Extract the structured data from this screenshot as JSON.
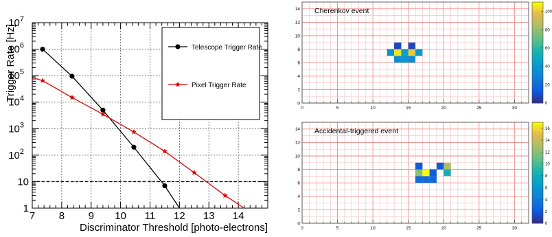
{
  "chart_data": [
    {
      "type": "line",
      "xlabel": "Discriminator Threshold [photo-electrons]",
      "ylabel": "Trigger Rate [Hz]",
      "xlim": [
        7,
        15
      ],
      "ylim": [
        1,
        10000000
      ],
      "y_scale": "log",
      "grid": true,
      "legend_position": "top-right",
      "x_ticks": [
        "7",
        "8",
        "9",
        "10",
        "11",
        "12",
        "13",
        "14"
      ],
      "y_ticks": [
        {
          "value": 1,
          "label": "1"
        },
        {
          "value": 10,
          "label": "10"
        },
        {
          "value": 100,
          "label": "10",
          "exp": "2"
        },
        {
          "value": 1000,
          "label": "10",
          "exp": "3"
        },
        {
          "value": 10000,
          "label": "10",
          "exp": "4"
        },
        {
          "value": 100000,
          "label": "10",
          "exp": "5"
        },
        {
          "value": 1000000,
          "label": "10",
          "exp": "6"
        },
        {
          "value": 10000000,
          "label": "10",
          "exp": "7"
        }
      ],
      "reference_line": {
        "y": 10,
        "style": "dashed",
        "color": "#000000"
      },
      "series": [
        {
          "name": "Telescope Trigger Rate",
          "color": "#000000",
          "marker": "circle",
          "x": [
            7.35,
            8.35,
            9.4,
            10.45,
            11.5,
            12.0
          ],
          "y": [
            1000000,
            95000,
            5000,
            200,
            7,
            1
          ]
        },
        {
          "name": "Pixel Trigger Rate",
          "color": "#e00000",
          "marker": "star",
          "x": [
            7.0,
            7.35,
            8.35,
            9.4,
            10.45,
            11.5,
            12.5,
            13.55,
            14.2
          ],
          "y": [
            85000,
            65000,
            15000,
            3500,
            750,
            140,
            22,
            3,
            1
          ]
        }
      ]
    },
    {
      "type": "heatmap",
      "title": "Cherenkov event",
      "xlim": [
        0,
        32
      ],
      "ylim": [
        0,
        15
      ],
      "x_ticks": [
        "0",
        "5",
        "10",
        "15",
        "20",
        "25",
        "30"
      ],
      "y_ticks": [
        "0",
        "2",
        "4",
        "6",
        "8",
        "10",
        "12",
        "14"
      ],
      "colorbar_ticks": [
        "0",
        "20",
        "40",
        "60",
        "80",
        "100"
      ],
      "z_range": [
        0,
        110
      ],
      "cells": [
        {
          "x": 13,
          "y": 8,
          "z": 8
        },
        {
          "x": 15,
          "y": 8,
          "z": 8
        },
        {
          "x": 12,
          "y": 7,
          "z": 40
        },
        {
          "x": 13,
          "y": 7,
          "z": 105
        },
        {
          "x": 14,
          "y": 7,
          "z": 45
        },
        {
          "x": 15,
          "y": 7,
          "z": 100
        },
        {
          "x": 16,
          "y": 7,
          "z": 40
        },
        {
          "x": 13,
          "y": 6,
          "z": 35
        },
        {
          "x": 14,
          "y": 6,
          "z": 38
        },
        {
          "x": 15,
          "y": 6,
          "z": 35
        }
      ]
    },
    {
      "type": "heatmap",
      "title": "Accidental-triggered event",
      "xlim": [
        0,
        32
      ],
      "ylim": [
        0,
        15
      ],
      "x_ticks": [
        "0",
        "5",
        "10",
        "15",
        "20",
        "25",
        "30"
      ],
      "y_ticks": [
        "0",
        "2",
        "4",
        "6",
        "8",
        "10",
        "12",
        "14"
      ],
      "colorbar_ticks": [
        "0",
        "2",
        "4",
        "6",
        "8",
        "10",
        "12",
        "14",
        "16"
      ],
      "z_range": [
        0,
        17
      ],
      "cells": [
        {
          "x": 16,
          "y": 8,
          "z": 2
        },
        {
          "x": 19,
          "y": 8,
          "z": 2
        },
        {
          "x": 20,
          "y": 8,
          "z": 13
        },
        {
          "x": 16,
          "y": 7,
          "z": 12
        },
        {
          "x": 17,
          "y": 7,
          "z": 17
        },
        {
          "x": 18,
          "y": 7,
          "z": 2
        },
        {
          "x": 20,
          "y": 7,
          "z": 8
        },
        {
          "x": 16,
          "y": 6,
          "z": 3
        },
        {
          "x": 17,
          "y": 6,
          "z": 3
        },
        {
          "x": 18,
          "y": 6,
          "z": 3
        }
      ]
    }
  ]
}
